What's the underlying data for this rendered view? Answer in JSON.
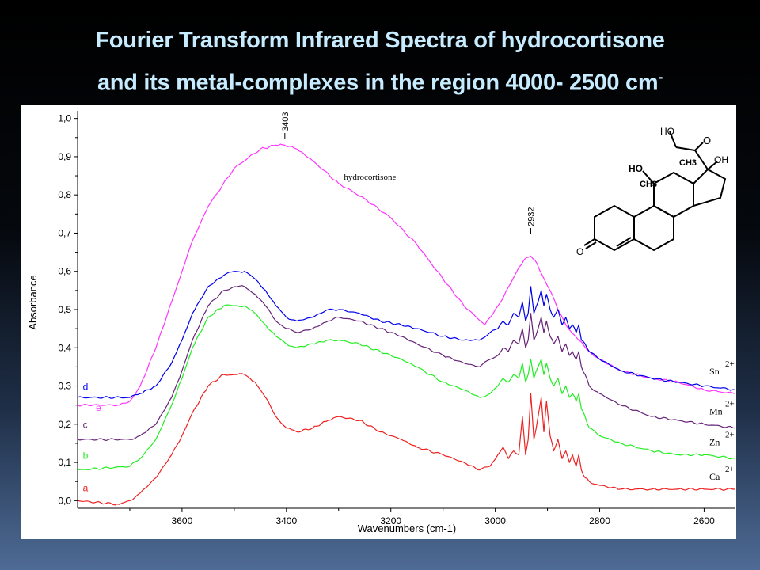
{
  "slide": {
    "title_line1": "Fourier Transform Infrared Spectra of hydrocortisone",
    "title_line2": "and its metal-complexes in the region 4000- 2500 cm",
    "title_sup": "-"
  },
  "chart_data": {
    "type": "line",
    "title": "",
    "xlabel": "Wavenumbers (cm-1)",
    "ylabel": "Absorbance",
    "xlim": [
      3800,
      2540
    ],
    "ylim": [
      -0.02,
      1.02
    ],
    "x_ticks": [
      3600,
      3400,
      3200,
      3000,
      2800,
      2600
    ],
    "y_ticks": [
      0.0,
      0.1,
      0.2,
      0.3,
      0.4,
      0.5,
      0.6,
      0.7,
      0.8,
      0.9,
      1.0
    ],
    "y_tick_labels": [
      "0,0",
      "0,1",
      "0,2",
      "0,3",
      "0,4",
      "0,5",
      "0,6",
      "0,7",
      "0,8",
      "0,9",
      "1,0"
    ],
    "grid": false,
    "peak_labels": [
      {
        "x": 3403,
        "text": "3403"
      },
      {
        "x": 2932,
        "text": "2932"
      }
    ],
    "annotation": {
      "text": "hydrocortisone",
      "x": 3290,
      "y": 0.84
    },
    "structure_labels": [
      "HO",
      "O",
      "OH",
      "HO",
      "CH3",
      "CH3",
      "O"
    ],
    "series": [
      {
        "letter": "e",
        "name": "hydrocortisone",
        "color": "#ff33ff",
        "letter_anchor": [
          3765,
          0.235
        ],
        "x": [
          3800,
          3720,
          3700,
          3680,
          3650,
          3620,
          3600,
          3580,
          3550,
          3500,
          3450,
          3420,
          3403,
          3380,
          3350,
          3300,
          3250,
          3200,
          3150,
          3100,
          3060,
          3020,
          3000,
          2985,
          2970,
          2955,
          2945,
          2932,
          2920,
          2910,
          2895,
          2880,
          2860,
          2840,
          2820,
          2800,
          2760,
          2700,
          2650,
          2600,
          2540
        ],
        "y": [
          0.25,
          0.25,
          0.26,
          0.3,
          0.4,
          0.52,
          0.6,
          0.68,
          0.77,
          0.87,
          0.92,
          0.93,
          0.93,
          0.92,
          0.89,
          0.83,
          0.79,
          0.74,
          0.67,
          0.58,
          0.51,
          0.46,
          0.5,
          0.53,
          0.57,
          0.61,
          0.63,
          0.64,
          0.62,
          0.59,
          0.55,
          0.5,
          0.45,
          0.42,
          0.39,
          0.37,
          0.34,
          0.32,
          0.31,
          0.29,
          0.28
        ]
      },
      {
        "letter": "d",
        "name": "Sn 2+",
        "color": "#0000ee",
        "letter_anchor": [
          3790,
          0.29
        ],
        "label": {
          "text": "Sn",
          "charge": "2+",
          "x": 2590,
          "y": 0.33
        },
        "x": [
          3800,
          3700,
          3680,
          3650,
          3620,
          3600,
          3580,
          3550,
          3520,
          3500,
          3480,
          3460,
          3440,
          3420,
          3400,
          3380,
          3350,
          3320,
          3300,
          3260,
          3220,
          3180,
          3150,
          3100,
          3060,
          3030,
          3010,
          2995,
          2985,
          2975,
          2965,
          2955,
          2948,
          2942,
          2937,
          2932,
          2926,
          2918,
          2912,
          2907,
          2902,
          2895,
          2888,
          2880,
          2872,
          2865,
          2858,
          2852,
          2845,
          2840,
          2835,
          2828,
          2820,
          2800,
          2760,
          2700,
          2650,
          2600,
          2540
        ],
        "y": [
          0.27,
          0.27,
          0.28,
          0.3,
          0.36,
          0.42,
          0.49,
          0.56,
          0.59,
          0.6,
          0.6,
          0.58,
          0.55,
          0.51,
          0.48,
          0.47,
          0.48,
          0.5,
          0.5,
          0.49,
          0.47,
          0.46,
          0.45,
          0.43,
          0.42,
          0.42,
          0.44,
          0.45,
          0.47,
          0.46,
          0.49,
          0.48,
          0.52,
          0.47,
          0.49,
          0.56,
          0.49,
          0.52,
          0.55,
          0.51,
          0.54,
          0.5,
          0.48,
          0.5,
          0.46,
          0.48,
          0.45,
          0.46,
          0.44,
          0.46,
          0.42,
          0.41,
          0.39,
          0.37,
          0.34,
          0.32,
          0.31,
          0.3,
          0.29
        ]
      },
      {
        "letter": "c",
        "name": "Mn 2+",
        "color": "#662277",
        "letter_anchor": [
          3790,
          0.19
        ],
        "label": {
          "text": "Mn",
          "charge": "2+",
          "x": 2590,
          "y": 0.225
        },
        "x": [
          3800,
          3700,
          3680,
          3650,
          3620,
          3600,
          3580,
          3550,
          3520,
          3500,
          3480,
          3460,
          3440,
          3420,
          3400,
          3380,
          3350,
          3320,
          3300,
          3260,
          3220,
          3180,
          3150,
          3100,
          3060,
          3030,
          3010,
          2995,
          2985,
          2975,
          2965,
          2955,
          2948,
          2942,
          2937,
          2932,
          2926,
          2918,
          2912,
          2907,
          2902,
          2895,
          2888,
          2880,
          2872,
          2865,
          2858,
          2852,
          2845,
          2840,
          2835,
          2828,
          2820,
          2800,
          2760,
          2700,
          2650,
          2600,
          2540
        ],
        "y": [
          0.16,
          0.16,
          0.17,
          0.2,
          0.27,
          0.34,
          0.42,
          0.51,
          0.55,
          0.56,
          0.56,
          0.54,
          0.51,
          0.47,
          0.45,
          0.44,
          0.45,
          0.47,
          0.48,
          0.47,
          0.45,
          0.43,
          0.41,
          0.38,
          0.36,
          0.35,
          0.37,
          0.38,
          0.4,
          0.39,
          0.42,
          0.41,
          0.45,
          0.4,
          0.42,
          0.49,
          0.42,
          0.45,
          0.48,
          0.44,
          0.47,
          0.43,
          0.41,
          0.43,
          0.39,
          0.41,
          0.38,
          0.39,
          0.37,
          0.39,
          0.35,
          0.33,
          0.3,
          0.28,
          0.25,
          0.22,
          0.21,
          0.2,
          0.19
        ]
      },
      {
        "letter": "b",
        "name": "Zn 2+",
        "color": "#22ee22",
        "letter_anchor": [
          3790,
          0.11
        ],
        "label": {
          "text": "Zn",
          "charge": "2+",
          "x": 2590,
          "y": 0.145
        },
        "x": [
          3800,
          3700,
          3680,
          3650,
          3620,
          3600,
          3580,
          3550,
          3520,
          3500,
          3480,
          3460,
          3440,
          3420,
          3400,
          3380,
          3350,
          3320,
          3300,
          3260,
          3220,
          3180,
          3150,
          3100,
          3060,
          3030,
          3010,
          2995,
          2985,
          2975,
          2965,
          2955,
          2948,
          2942,
          2937,
          2932,
          2926,
          2918,
          2912,
          2907,
          2902,
          2895,
          2888,
          2880,
          2872,
          2865,
          2858,
          2852,
          2845,
          2840,
          2835,
          2828,
          2820,
          2800,
          2760,
          2700,
          2650,
          2600,
          2540
        ],
        "y": [
          0.08,
          0.09,
          0.11,
          0.16,
          0.25,
          0.32,
          0.4,
          0.48,
          0.51,
          0.51,
          0.51,
          0.49,
          0.46,
          0.43,
          0.41,
          0.4,
          0.41,
          0.42,
          0.42,
          0.41,
          0.39,
          0.37,
          0.35,
          0.31,
          0.29,
          0.27,
          0.28,
          0.3,
          0.32,
          0.31,
          0.33,
          0.32,
          0.36,
          0.31,
          0.33,
          0.37,
          0.32,
          0.35,
          0.37,
          0.33,
          0.36,
          0.32,
          0.3,
          0.32,
          0.28,
          0.3,
          0.27,
          0.28,
          0.26,
          0.28,
          0.24,
          0.22,
          0.19,
          0.17,
          0.15,
          0.13,
          0.12,
          0.12,
          0.11
        ]
      },
      {
        "letter": "a",
        "name": "Ca 2+",
        "color": "#ee2222",
        "letter_anchor": [
          3790,
          0.025
        ],
        "label": {
          "text": "Ca",
          "charge": "2+",
          "x": 2590,
          "y": 0.055
        },
        "x": [
          3800,
          3720,
          3700,
          3680,
          3650,
          3620,
          3600,
          3580,
          3550,
          3520,
          3500,
          3480,
          3460,
          3440,
          3420,
          3400,
          3380,
          3350,
          3320,
          3300,
          3260,
          3220,
          3180,
          3150,
          3100,
          3060,
          3030,
          3010,
          2995,
          2985,
          2975,
          2965,
          2955,
          2948,
          2942,
          2937,
          2932,
          2926,
          2918,
          2912,
          2907,
          2902,
          2895,
          2888,
          2880,
          2872,
          2865,
          2858,
          2852,
          2845,
          2840,
          2835,
          2828,
          2820,
          2800,
          2760,
          2700,
          2650,
          2600,
          2540
        ],
        "y": [
          0.0,
          -0.01,
          0.0,
          0.02,
          0.06,
          0.12,
          0.17,
          0.23,
          0.3,
          0.33,
          0.33,
          0.33,
          0.31,
          0.27,
          0.22,
          0.19,
          0.18,
          0.19,
          0.21,
          0.22,
          0.21,
          0.18,
          0.16,
          0.14,
          0.12,
          0.1,
          0.08,
          0.09,
          0.12,
          0.14,
          0.11,
          0.13,
          0.12,
          0.22,
          0.12,
          0.16,
          0.28,
          0.16,
          0.22,
          0.27,
          0.18,
          0.26,
          0.17,
          0.13,
          0.16,
          0.11,
          0.13,
          0.1,
          0.12,
          0.09,
          0.12,
          0.08,
          0.06,
          0.05,
          0.04,
          0.03,
          0.03,
          0.03,
          0.03,
          0.03
        ]
      }
    ]
  }
}
